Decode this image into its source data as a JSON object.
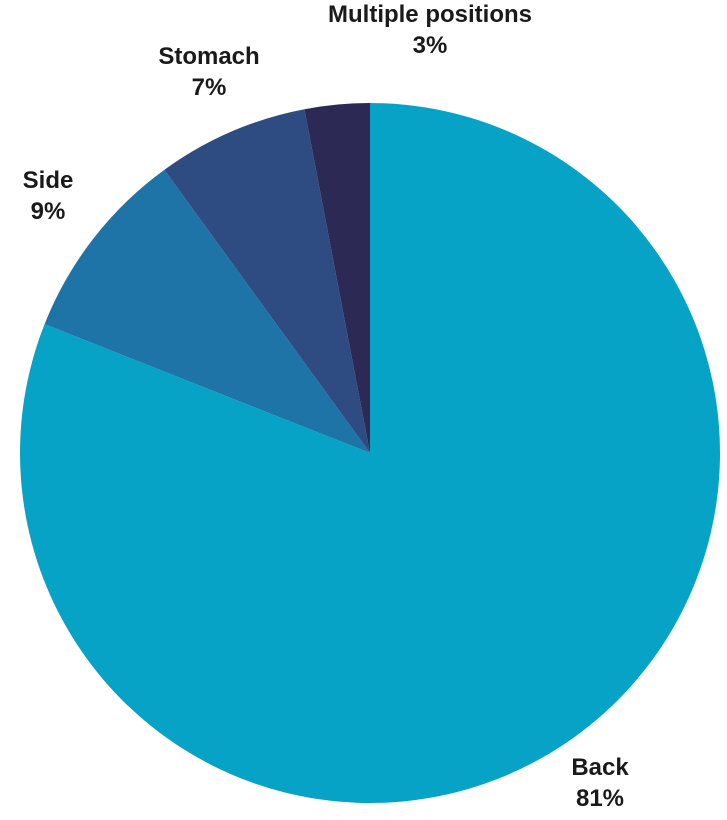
{
  "chart_data": {
    "type": "pie",
    "title": "",
    "categories": [
      "Back",
      "Side",
      "Stomach",
      "Multiple positions"
    ],
    "values": [
      81,
      9,
      7,
      3
    ],
    "labels": [
      "81%",
      "9%",
      "7%",
      "3%"
    ],
    "colors": [
      "#06A3C6",
      "#1E74A6",
      "#2F4C82",
      "#2C2955"
    ],
    "start_angle": "12 o'clock",
    "direction": "clockwise",
    "legend": "none"
  }
}
